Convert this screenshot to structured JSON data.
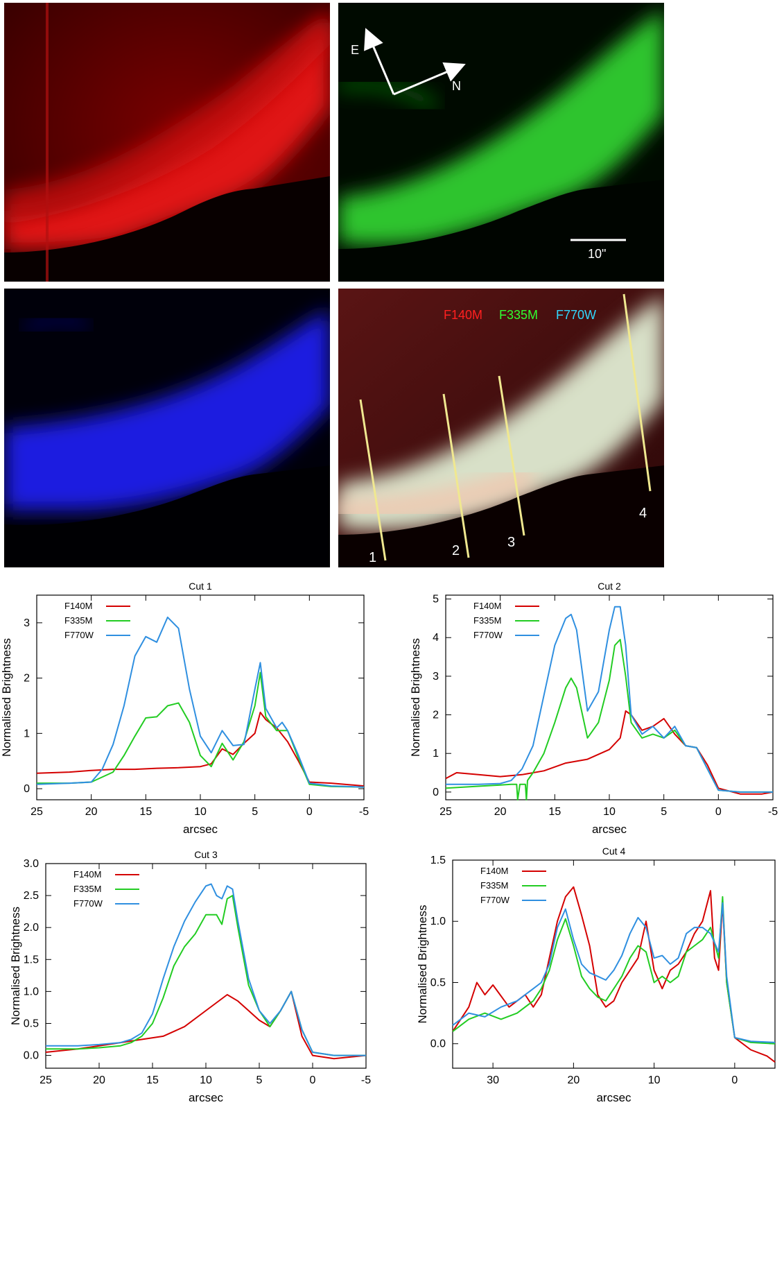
{
  "images": {
    "compass": {
      "east": "E",
      "north": "N"
    },
    "scale_bar": "10\"",
    "filter_labels": [
      {
        "text": "F140M",
        "color": "#ff2020"
      },
      {
        "text": "F335M",
        "color": "#30ff30"
      },
      {
        "text": "F770W",
        "color": "#30d8ff"
      }
    ],
    "cut_labels": [
      "1",
      "2",
      "3",
      "4"
    ]
  },
  "colors": {
    "F140M": "#d40000",
    "F335M": "#22cc22",
    "F770W": "#2f8fe0"
  },
  "chart_data": [
    {
      "type": "line",
      "title": "Cut 1",
      "xlabel": "arcsec",
      "ylabel": "Normalised Brightness",
      "xlim": [
        25,
        -5
      ],
      "ylim": [
        -0.2,
        3.5
      ],
      "xticks": [
        25,
        20,
        15,
        10,
        5,
        0,
        -5
      ],
      "yticks": [
        0,
        1,
        2,
        3
      ],
      "legend": "top-left",
      "series": [
        {
          "name": "F140M",
          "x": [
            25,
            22,
            20,
            18,
            16,
            14,
            12,
            10,
            9,
            8,
            7,
            6,
            5,
            4.5,
            4,
            3,
            2,
            1,
            0,
            -2,
            -5
          ],
          "y": [
            0.28,
            0.3,
            0.33,
            0.35,
            0.35,
            0.37,
            0.38,
            0.4,
            0.45,
            0.72,
            0.62,
            0.82,
            1.0,
            1.38,
            1.25,
            1.1,
            0.85,
            0.5,
            0.12,
            0.1,
            0.05
          ]
        },
        {
          "name": "F335M",
          "x": [
            25,
            22,
            20,
            18,
            17,
            16,
            15,
            14,
            13,
            12,
            11,
            10,
            9,
            8,
            7,
            6,
            5,
            4.5,
            4,
            3,
            2,
            1,
            0,
            -2,
            -5
          ],
          "y": [
            0.1,
            0.1,
            0.12,
            0.3,
            0.6,
            0.95,
            1.28,
            1.3,
            1.5,
            1.55,
            1.2,
            0.6,
            0.4,
            0.82,
            0.52,
            0.85,
            1.5,
            2.1,
            1.3,
            1.05,
            1.05,
            0.55,
            0.08,
            0.04,
            0.03
          ]
        },
        {
          "name": "F770W",
          "x": [
            25,
            22,
            20,
            19,
            18,
            17,
            16,
            15,
            14,
            13,
            12,
            11,
            10,
            9,
            8,
            7,
            6,
            5,
            4.5,
            4,
            3,
            2.5,
            2,
            1,
            0,
            -2,
            -5
          ],
          "y": [
            0.08,
            0.1,
            0.12,
            0.35,
            0.8,
            1.5,
            2.4,
            2.75,
            2.65,
            3.1,
            2.9,
            1.8,
            0.95,
            0.65,
            1.05,
            0.78,
            0.8,
            1.8,
            2.28,
            1.45,
            1.1,
            1.2,
            1.05,
            0.6,
            0.1,
            0.05,
            0.03
          ]
        }
      ]
    },
    {
      "type": "line",
      "title": "Cut 2",
      "xlabel": "arcsec",
      "ylabel": "Normalised Brightness",
      "xlim": [
        25,
        -5
      ],
      "ylim": [
        -0.2,
        5.1
      ],
      "xticks": [
        25,
        20,
        15,
        10,
        5,
        0,
        -5
      ],
      "yticks": [
        0,
        1,
        2,
        3,
        4,
        5
      ],
      "legend": "top-left",
      "series": [
        {
          "name": "F140M",
          "x": [
            25,
            24,
            22,
            20,
            18,
            16,
            14,
            12,
            10,
            9,
            8.5,
            8,
            7,
            6,
            5,
            4,
            3,
            2,
            1,
            0,
            -2,
            -4,
            -5
          ],
          "y": [
            0.35,
            0.5,
            0.45,
            0.4,
            0.45,
            0.55,
            0.75,
            0.85,
            1.1,
            1.4,
            2.1,
            2.0,
            1.6,
            1.7,
            1.9,
            1.5,
            1.2,
            1.15,
            0.7,
            0.1,
            -0.05,
            -0.05,
            0.0
          ]
        },
        {
          "name": "F335M",
          "x": [
            25,
            22,
            20,
            19,
            18.5,
            18.4,
            18.2,
            18,
            17.7,
            17.6,
            17.5,
            17,
            16,
            15,
            14,
            13.5,
            13,
            12,
            11,
            10,
            9.5,
            9,
            8.5,
            8,
            7,
            6,
            5,
            4,
            3,
            2,
            1,
            0,
            -2,
            -5
          ],
          "y": [
            0.1,
            0.15,
            0.18,
            0.2,
            0.2,
            -0.2,
            0.2,
            0.2,
            0.2,
            -0.2,
            0.3,
            0.5,
            1.0,
            1.8,
            2.7,
            2.95,
            2.7,
            1.4,
            1.8,
            2.9,
            3.8,
            3.95,
            3.0,
            1.8,
            1.4,
            1.5,
            1.4,
            1.6,
            1.2,
            1.15,
            0.6,
            0.05,
            0.0,
            0.0
          ]
        },
        {
          "name": "F770W",
          "x": [
            25,
            22,
            20,
            19,
            18,
            17,
            16,
            15,
            14,
            13.5,
            13,
            12,
            11,
            10,
            9.5,
            9,
            8.5,
            8,
            7,
            6,
            5,
            4,
            3,
            2,
            1,
            0,
            -2,
            -5
          ],
          "y": [
            0.2,
            0.2,
            0.22,
            0.3,
            0.6,
            1.2,
            2.5,
            3.8,
            4.5,
            4.6,
            4.2,
            2.1,
            2.6,
            4.2,
            4.8,
            4.8,
            3.8,
            2.0,
            1.5,
            1.7,
            1.4,
            1.7,
            1.2,
            1.15,
            0.6,
            0.05,
            0.0,
            0.0
          ]
        }
      ]
    },
    {
      "type": "line",
      "title": "Cut 3",
      "xlabel": "arcsec",
      "ylabel": "Normalised Brightness",
      "xlim": [
        25,
        -5
      ],
      "ylim": [
        -0.2,
        3.0
      ],
      "xticks": [
        25,
        20,
        15,
        10,
        5,
        0,
        -5
      ],
      "yticks": [
        0.0,
        0.5,
        1.0,
        1.5,
        2.0,
        2.5,
        3.0
      ],
      "legend": "top-left",
      "series": [
        {
          "name": "F140M",
          "x": [
            25,
            22,
            20,
            18,
            16,
            14,
            12,
            10,
            8,
            7,
            6,
            5,
            4,
            3,
            2,
            1,
            0,
            -2,
            -5
          ],
          "y": [
            0.05,
            0.1,
            0.15,
            0.2,
            0.25,
            0.3,
            0.45,
            0.7,
            0.95,
            0.85,
            0.7,
            0.55,
            0.45,
            0.7,
            1.0,
            0.3,
            0.0,
            -0.05,
            0.0
          ]
        },
        {
          "name": "F335M",
          "x": [
            25,
            22,
            20,
            18,
            17,
            16,
            15,
            14,
            13,
            12,
            11,
            10,
            9,
            8.5,
            8,
            7.5,
            7,
            6,
            5,
            4,
            3,
            2,
            1,
            0,
            -2,
            -5
          ],
          "y": [
            0.1,
            0.1,
            0.12,
            0.15,
            0.2,
            0.3,
            0.5,
            0.9,
            1.4,
            1.7,
            1.9,
            2.2,
            2.2,
            2.05,
            2.45,
            2.5,
            2.0,
            1.1,
            0.7,
            0.45,
            0.7,
            1.0,
            0.4,
            0.05,
            0.0,
            0.0
          ]
        },
        {
          "name": "F770W",
          "x": [
            25,
            22,
            20,
            18,
            17,
            16,
            15,
            14,
            13,
            12,
            11,
            10,
            9.5,
            9,
            8.5,
            8,
            7.5,
            7,
            6,
            5,
            4,
            3,
            2,
            1,
            0,
            -2,
            -5
          ],
          "y": [
            0.15,
            0.15,
            0.17,
            0.2,
            0.25,
            0.35,
            0.65,
            1.2,
            1.7,
            2.1,
            2.4,
            2.65,
            2.68,
            2.5,
            2.45,
            2.65,
            2.6,
            2.1,
            1.2,
            0.7,
            0.5,
            0.7,
            1.0,
            0.4,
            0.05,
            0.0,
            0.0
          ]
        }
      ]
    },
    {
      "type": "line",
      "title": "Cut 4",
      "xlabel": "arcsec",
      "ylabel": "Normalised Brightness",
      "xlim": [
        35,
        -5
      ],
      "ylim": [
        -0.2,
        1.5
      ],
      "xticks": [
        30,
        20,
        10,
        0
      ],
      "yticks": [
        0.0,
        0.5,
        1.0,
        1.5
      ],
      "legend": "top-left",
      "series": [
        {
          "name": "F140M",
          "x": [
            35,
            33,
            32,
            31,
            30,
            28,
            27,
            26,
            25,
            24,
            23,
            22,
            21,
            20,
            19,
            18,
            17,
            16,
            15,
            14,
            13,
            12,
            11,
            10,
            9,
            8,
            7,
            6,
            5,
            4,
            3,
            2.5,
            2,
            1.5,
            1,
            0,
            -2,
            -4,
            -5
          ],
          "y": [
            0.1,
            0.3,
            0.5,
            0.4,
            0.48,
            0.3,
            0.35,
            0.4,
            0.3,
            0.4,
            0.7,
            1.0,
            1.2,
            1.28,
            1.05,
            0.8,
            0.4,
            0.3,
            0.35,
            0.5,
            0.6,
            0.7,
            1.0,
            0.6,
            0.45,
            0.6,
            0.65,
            0.75,
            0.9,
            1.0,
            1.25,
            0.7,
            0.6,
            1.15,
            0.5,
            0.05,
            -0.05,
            -0.1,
            -0.15
          ]
        },
        {
          "name": "F335M",
          "x": [
            35,
            33,
            31,
            29,
            27,
            25,
            24,
            23,
            22,
            21,
            20,
            19,
            18,
            17,
            16,
            15,
            14,
            13,
            12,
            11,
            10,
            9,
            8,
            7,
            6,
            5,
            4,
            3,
            2,
            1.5,
            1,
            0,
            -2,
            -5
          ],
          "y": [
            0.1,
            0.2,
            0.25,
            0.2,
            0.25,
            0.35,
            0.45,
            0.6,
            0.85,
            1.02,
            0.8,
            0.55,
            0.45,
            0.38,
            0.35,
            0.45,
            0.55,
            0.7,
            0.8,
            0.75,
            0.5,
            0.55,
            0.5,
            0.55,
            0.75,
            0.8,
            0.85,
            0.95,
            0.7,
            1.2,
            0.5,
            0.05,
            0.01,
            0.0
          ]
        },
        {
          "name": "F770W",
          "x": [
            35,
            33,
            31,
            29,
            27,
            25,
            24,
            23,
            22,
            21,
            20,
            19,
            18,
            17,
            16,
            15,
            14,
            13,
            12,
            11,
            10,
            9,
            8,
            7,
            6,
            5,
            4,
            3,
            2,
            1.5,
            1,
            0,
            -2,
            -5
          ],
          "y": [
            0.15,
            0.25,
            0.22,
            0.3,
            0.35,
            0.45,
            0.5,
            0.65,
            0.95,
            1.1,
            0.85,
            0.65,
            0.58,
            0.55,
            0.52,
            0.6,
            0.72,
            0.9,
            1.03,
            0.95,
            0.7,
            0.72,
            0.65,
            0.7,
            0.9,
            0.95,
            0.95,
            0.9,
            0.75,
            1.15,
            0.55,
            0.05,
            0.02,
            0.01
          ]
        }
      ]
    }
  ]
}
